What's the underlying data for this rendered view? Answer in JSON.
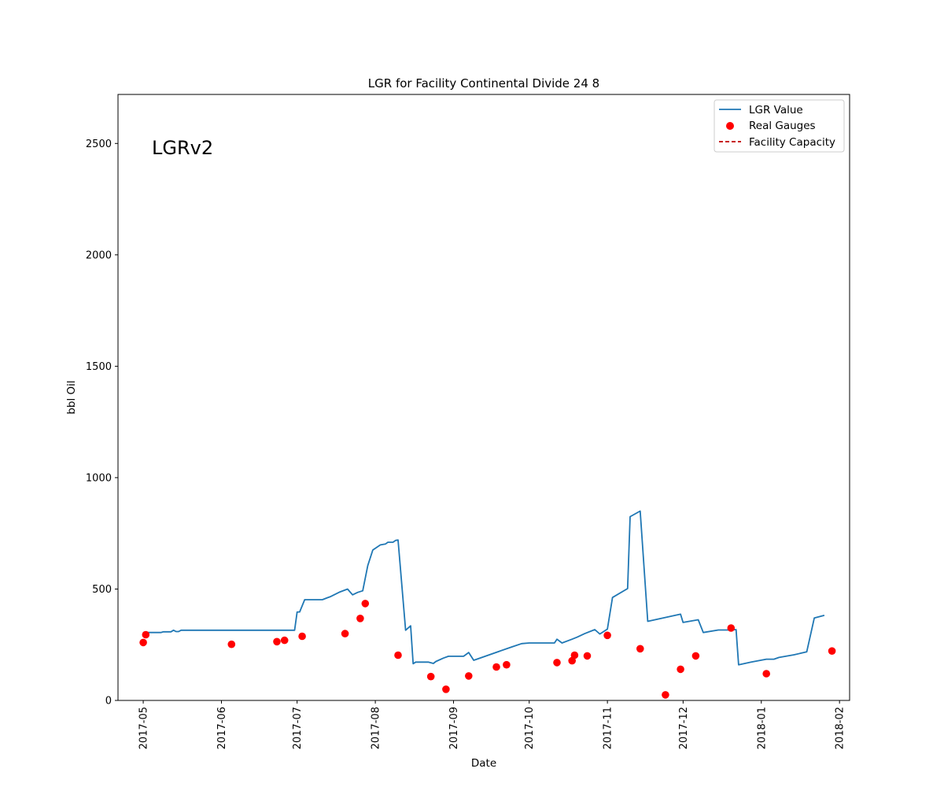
{
  "chart_data": {
    "type": "line",
    "title": "LGR for Facility Continental Divide 24 8",
    "xlabel": "Date",
    "ylabel": "bbl Oil",
    "annotation": "LGRv2",
    "xlim": [
      "2017-04-21",
      "2018-02-05"
    ],
    "ylim": [
      0,
      2720
    ],
    "x_ticks": [
      "2017-05",
      "2017-06",
      "2017-07",
      "2017-08",
      "2017-09",
      "2017-10",
      "2017-11",
      "2017-12",
      "2018-01",
      "2018-02"
    ],
    "y_ticks": [
      0,
      500,
      1000,
      1500,
      2000,
      2500
    ],
    "grid": false,
    "legend_position": "top-right",
    "series": [
      {
        "name": "LGR Value",
        "kind": "line",
        "color": "#1f77b4",
        "points": [
          [
            "2017-05-01",
            305
          ],
          [
            "2017-05-08",
            305
          ],
          [
            "2017-05-09",
            308
          ],
          [
            "2017-05-12",
            308
          ],
          [
            "2017-05-13",
            315
          ],
          [
            "2017-05-14",
            309
          ],
          [
            "2017-05-15",
            309
          ],
          [
            "2017-05-16",
            315
          ],
          [
            "2017-06-30",
            315
          ],
          [
            "2017-07-01",
            397
          ],
          [
            "2017-07-02",
            397
          ],
          [
            "2017-07-04",
            452
          ],
          [
            "2017-07-11",
            452
          ],
          [
            "2017-07-13",
            461
          ],
          [
            "2017-07-14",
            465
          ],
          [
            "2017-07-18",
            487
          ],
          [
            "2017-07-21",
            500
          ],
          [
            "2017-07-23",
            474
          ],
          [
            "2017-07-25",
            485
          ],
          [
            "2017-07-27",
            492
          ],
          [
            "2017-07-29",
            605
          ],
          [
            "2017-07-31",
            675
          ],
          [
            "2017-08-03",
            698
          ],
          [
            "2017-08-05",
            702
          ],
          [
            "2017-08-06",
            710
          ],
          [
            "2017-08-08",
            710
          ],
          [
            "2017-08-09",
            718
          ],
          [
            "2017-08-10",
            720
          ],
          [
            "2017-08-13",
            315
          ],
          [
            "2017-08-15",
            335
          ],
          [
            "2017-08-16",
            165
          ],
          [
            "2017-08-17",
            172
          ],
          [
            "2017-08-22",
            172
          ],
          [
            "2017-08-24",
            166
          ],
          [
            "2017-08-25",
            175
          ],
          [
            "2017-08-28",
            190
          ],
          [
            "2017-08-30",
            198
          ],
          [
            "2017-09-05",
            198
          ],
          [
            "2017-09-07",
            215
          ],
          [
            "2017-09-09",
            180
          ],
          [
            "2017-09-24",
            240
          ],
          [
            "2017-09-28",
            255
          ],
          [
            "2017-10-01",
            258
          ],
          [
            "2017-10-11",
            258
          ],
          [
            "2017-10-12",
            275
          ],
          [
            "2017-10-14",
            258
          ],
          [
            "2017-10-18",
            275
          ],
          [
            "2017-10-20",
            284
          ],
          [
            "2017-10-23",
            300
          ],
          [
            "2017-10-27",
            318
          ],
          [
            "2017-10-29",
            298
          ],
          [
            "2017-11-01",
            320
          ],
          [
            "2017-11-03",
            462
          ],
          [
            "2017-11-09",
            502
          ],
          [
            "2017-11-10",
            825
          ],
          [
            "2017-11-14",
            850
          ],
          [
            "2017-11-17",
            355
          ],
          [
            "2017-11-30",
            387
          ],
          [
            "2017-12-01",
            350
          ],
          [
            "2017-12-07",
            362
          ],
          [
            "2017-12-09",
            305
          ],
          [
            "2017-12-15",
            316
          ],
          [
            "2017-12-20",
            316
          ],
          [
            "2017-12-22",
            318
          ],
          [
            "2017-12-23",
            160
          ],
          [
            "2017-12-28",
            172
          ],
          [
            "2018-01-03",
            185
          ],
          [
            "2018-01-06",
            185
          ],
          [
            "2018-01-08",
            193
          ],
          [
            "2018-01-14",
            205
          ],
          [
            "2018-01-19",
            218
          ],
          [
            "2018-01-22",
            370
          ],
          [
            "2018-01-26",
            382
          ]
        ]
      },
      {
        "name": "Real Gauges",
        "kind": "scatter",
        "color": "#ff0000",
        "points": [
          [
            "2017-05-01",
            260
          ],
          [
            "2017-05-02",
            295
          ],
          [
            "2017-06-05",
            252
          ],
          [
            "2017-06-23",
            264
          ],
          [
            "2017-06-26",
            270
          ],
          [
            "2017-07-03",
            288
          ],
          [
            "2017-07-20",
            300
          ],
          [
            "2017-07-26",
            368
          ],
          [
            "2017-07-28",
            435
          ],
          [
            "2017-08-10",
            203
          ],
          [
            "2017-08-23",
            107
          ],
          [
            "2017-08-29",
            50
          ],
          [
            "2017-09-07",
            110
          ],
          [
            "2017-09-18",
            150
          ],
          [
            "2017-09-22",
            160
          ],
          [
            "2017-10-12",
            170
          ],
          [
            "2017-10-18",
            178
          ],
          [
            "2017-10-19",
            203
          ],
          [
            "2017-10-24",
            200
          ],
          [
            "2017-11-01",
            292
          ],
          [
            "2017-11-14",
            232
          ],
          [
            "2017-11-24",
            25
          ],
          [
            "2017-11-30",
            140
          ],
          [
            "2017-12-06",
            200
          ],
          [
            "2017-12-20",
            325
          ],
          [
            "2018-01-03",
            120
          ],
          [
            "2018-01-29",
            222
          ]
        ]
      },
      {
        "name": "Facility Capacity",
        "kind": "dashed-line",
        "color": "#c00000",
        "points": []
      }
    ]
  }
}
